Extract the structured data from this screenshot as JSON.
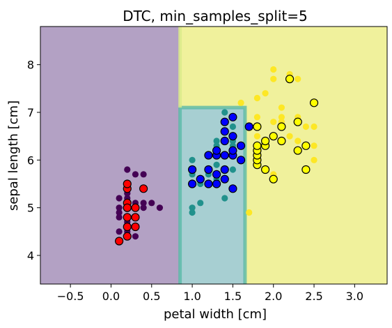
{
  "chart_data": {
    "type": "scatter",
    "title": "DTC, min_samples_split=5",
    "xlabel": "petal width [cm]",
    "ylabel": "sepal length [cm]",
    "xlim": [
      -0.87,
      3.4
    ],
    "ylim": [
      3.4,
      8.8
    ],
    "xticks": [
      "−0.5",
      "0.0",
      "0.5",
      "1.0",
      "1.5",
      "2.0",
      "2.5",
      "3.0"
    ],
    "xtick_values": [
      -0.5,
      0.0,
      0.5,
      1.0,
      1.5,
      2.0,
      2.5,
      3.0
    ],
    "yticks": [
      "4",
      "5",
      "6",
      "7",
      "8"
    ],
    "ytick_values": [
      4,
      5,
      6,
      7,
      8
    ],
    "grid": false,
    "legend": "none",
    "decision_regions": [
      {
        "class": 0,
        "color": "#b3a1c4",
        "polygon": [
          [
            -0.87,
            3.4
          ],
          [
            0.85,
            3.4
          ],
          [
            0.85,
            8.8
          ],
          [
            -0.87,
            8.8
          ]
        ]
      },
      {
        "class": 1,
        "color": "#a7cfd2",
        "polygon": [
          [
            0.85,
            3.4
          ],
          [
            1.65,
            3.4
          ],
          [
            1.65,
            7.1
          ],
          [
            0.85,
            7.1
          ]
        ]
      },
      {
        "class": 2,
        "color": "#f0f19c",
        "polygon": [
          [
            1.65,
            3.4
          ],
          [
            3.4,
            3.4
          ],
          [
            3.4,
            8.8
          ],
          [
            0.85,
            8.8
          ],
          [
            0.85,
            7.1
          ],
          [
            1.65,
            7.1
          ]
        ]
      }
    ],
    "region_boundaries": [
      {
        "color": "#5ab9a8",
        "points": [
          [
            0.85,
            3.4
          ],
          [
            0.85,
            7.1
          ],
          [
            1.65,
            7.1
          ],
          [
            1.65,
            3.4
          ]
        ]
      },
      {
        "color": "#d9eb8a",
        "points": [
          [
            0.85,
            7.1
          ],
          [
            0.85,
            8.8
          ]
        ]
      }
    ],
    "series": [
      {
        "style": "train",
        "color": "#440154",
        "points": [
          [
            0.1,
            4.9
          ],
          [
            0.1,
            4.8
          ],
          [
            0.1,
            5.0
          ],
          [
            0.2,
            5.1
          ],
          [
            0.2,
            4.6
          ],
          [
            0.2,
            5.4
          ],
          [
            0.3,
            5.1
          ],
          [
            0.3,
            5.7
          ],
          [
            0.3,
            5.0
          ],
          [
            0.3,
            4.8
          ],
          [
            0.4,
            5.4
          ],
          [
            0.4,
            5.1
          ],
          [
            0.4,
            5.7
          ],
          [
            0.5,
            5.1
          ],
          [
            0.6,
            5.0
          ],
          [
            0.1,
            4.3
          ],
          [
            0.2,
            5.8
          ],
          [
            0.2,
            5.2
          ],
          [
            0.2,
            4.4
          ],
          [
            0.2,
            4.7
          ],
          [
            0.2,
            5.3
          ],
          [
            0.4,
            5.0
          ],
          [
            0.3,
            4.6
          ],
          [
            0.2,
            4.5
          ],
          [
            0.1,
            5.2
          ],
          [
            0.3,
            4.4
          ],
          [
            0.2,
            5.5
          ],
          [
            0.2,
            4.8
          ],
          [
            0.1,
            4.5
          ]
        ]
      },
      {
        "style": "train",
        "color": "#21918c",
        "points": [
          [
            1.0,
            5.0
          ],
          [
            1.0,
            5.8
          ],
          [
            1.0,
            6.0
          ],
          [
            1.1,
            5.1
          ],
          [
            1.1,
            5.6
          ],
          [
            1.2,
            5.5
          ],
          [
            1.2,
            5.7
          ],
          [
            1.2,
            6.1
          ],
          [
            1.3,
            5.6
          ],
          [
            1.3,
            5.7
          ],
          [
            1.3,
            6.4
          ],
          [
            1.3,
            5.5
          ],
          [
            1.3,
            6.3
          ],
          [
            1.4,
            6.6
          ],
          [
            1.4,
            6.1
          ],
          [
            1.4,
            7.0
          ],
          [
            1.5,
            6.9
          ],
          [
            1.5,
            6.4
          ],
          [
            1.5,
            6.7
          ],
          [
            1.5,
            6.3
          ],
          [
            1.6,
            6.0
          ],
          [
            1.4,
            5.2
          ],
          [
            1.0,
            4.9
          ],
          [
            1.3,
            6.2
          ],
          [
            1.4,
            5.6
          ],
          [
            1.5,
            5.8
          ],
          [
            1.2,
            5.8
          ],
          [
            1.3,
            5.9
          ],
          [
            1.5,
            6.2
          ],
          [
            1.0,
            5.7
          ],
          [
            1.4,
            6.8
          ],
          [
            1.1,
            5.5
          ]
        ]
      },
      {
        "style": "train",
        "color": "#fde725",
        "points": [
          [
            1.7,
            4.9
          ],
          [
            1.8,
            6.3
          ],
          [
            1.8,
            6.5
          ],
          [
            1.8,
            6.1
          ],
          [
            1.8,
            6.2
          ],
          [
            1.8,
            6.0
          ],
          [
            1.9,
            6.4
          ],
          [
            1.9,
            6.3
          ],
          [
            2.0,
            6.5
          ],
          [
            2.0,
            7.9
          ],
          [
            2.0,
            7.7
          ],
          [
            2.1,
            6.8
          ],
          [
            2.1,
            7.1
          ],
          [
            2.1,
            6.9
          ],
          [
            2.1,
            6.4
          ],
          [
            2.2,
            6.5
          ],
          [
            2.3,
            6.9
          ],
          [
            2.3,
            7.7
          ],
          [
            2.3,
            6.4
          ],
          [
            2.3,
            6.8
          ],
          [
            2.3,
            6.2
          ],
          [
            2.4,
            6.7
          ],
          [
            2.4,
            6.3
          ],
          [
            2.5,
            6.7
          ],
          [
            2.5,
            6.3
          ],
          [
            2.5,
            6.0
          ],
          [
            1.6,
            7.2
          ],
          [
            1.8,
            7.3
          ],
          [
            1.9,
            7.4
          ],
          [
            2.0,
            5.7
          ],
          [
            2.2,
            7.8
          ],
          [
            2.1,
            6.7
          ],
          [
            1.8,
            6.9
          ],
          [
            2.0,
            6.8
          ]
        ]
      },
      {
        "style": "test",
        "color": "#ff0000",
        "points": [
          [
            0.1,
            4.3
          ],
          [
            0.2,
            4.4
          ],
          [
            0.2,
            4.6
          ],
          [
            0.2,
            4.8
          ],
          [
            0.2,
            5.0
          ],
          [
            0.2,
            5.1
          ],
          [
            0.2,
            5.4
          ],
          [
            0.2,
            5.5
          ],
          [
            0.3,
            4.6
          ],
          [
            0.3,
            5.0
          ],
          [
            0.4,
            5.4
          ],
          [
            0.2,
            5.0
          ],
          [
            0.3,
            4.8
          ]
        ]
      },
      {
        "style": "test",
        "color": "#0000ff",
        "points": [
          [
            1.0,
            5.5
          ],
          [
            1.0,
            5.8
          ],
          [
            1.1,
            5.6
          ],
          [
            1.2,
            5.5
          ],
          [
            1.2,
            6.1
          ],
          [
            1.3,
            5.5
          ],
          [
            1.3,
            5.7
          ],
          [
            1.3,
            6.1
          ],
          [
            1.3,
            6.2
          ],
          [
            1.4,
            5.6
          ],
          [
            1.4,
            6.1
          ],
          [
            1.4,
            6.4
          ],
          [
            1.4,
            6.6
          ],
          [
            1.4,
            6.8
          ],
          [
            1.5,
            6.1
          ],
          [
            1.5,
            6.2
          ],
          [
            1.5,
            6.5
          ],
          [
            1.5,
            6.9
          ],
          [
            1.6,
            6.0
          ],
          [
            1.6,
            6.3
          ],
          [
            1.7,
            6.7
          ],
          [
            1.5,
            5.4
          ],
          [
            1.4,
            5.8
          ],
          [
            1.2,
            5.8
          ]
        ]
      },
      {
        "style": "test",
        "color": "#ffff00",
        "points": [
          [
            1.8,
            5.9
          ],
          [
            1.8,
            6.0
          ],
          [
            1.8,
            6.1
          ],
          [
            1.8,
            6.2
          ],
          [
            1.8,
            6.3
          ],
          [
            1.8,
            6.7
          ],
          [
            1.9,
            5.8
          ],
          [
            1.9,
            6.3
          ],
          [
            1.9,
            6.4
          ],
          [
            2.0,
            5.6
          ],
          [
            2.0,
            6.5
          ],
          [
            2.1,
            6.4
          ],
          [
            2.1,
            6.7
          ],
          [
            2.2,
            7.7
          ],
          [
            2.3,
            6.2
          ],
          [
            2.3,
            6.8
          ],
          [
            2.4,
            5.8
          ],
          [
            2.4,
            6.3
          ],
          [
            2.5,
            7.2
          ]
        ]
      }
    ]
  }
}
